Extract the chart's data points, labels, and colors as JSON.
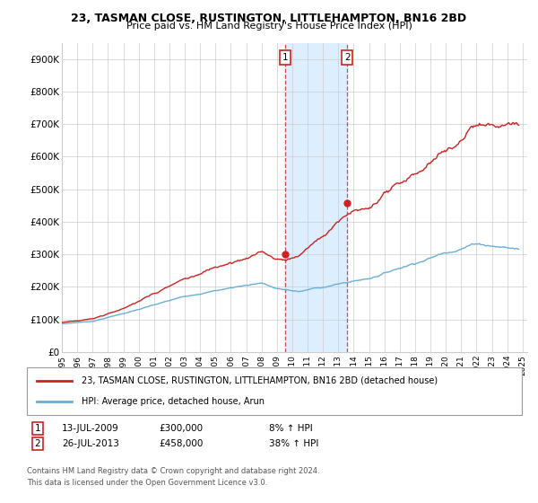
{
  "title": "23, TASMAN CLOSE, RUSTINGTON, LITTLEHAMPTON, BN16 2BD",
  "subtitle": "Price paid vs. HM Land Registry's House Price Index (HPI)",
  "legend_line1": "23, TASMAN CLOSE, RUSTINGTON, LITTLEHAMPTON, BN16 2BD (detached house)",
  "legend_line2": "HPI: Average price, detached house, Arun",
  "annotation1_date": "13-JUL-2009",
  "annotation1_price": "£300,000",
  "annotation1_pct": "8% ↑ HPI",
  "annotation2_date": "26-JUL-2013",
  "annotation2_price": "£458,000",
  "annotation2_pct": "38% ↑ HPI",
  "footnote1": "Contains HM Land Registry data © Crown copyright and database right 2024.",
  "footnote2": "This data is licensed under the Open Government Licence v3.0.",
  "sale1_year": 2009.54,
  "sale1_value": 300000,
  "sale2_year": 2013.57,
  "sale2_value": 458000,
  "hpi_color": "#6baed6",
  "price_color": "#cc2222",
  "sale_marker_color": "#cc2222",
  "shaded_region_color": "#ddeeff",
  "background_color": "#ffffff",
  "grid_color": "#cccccc",
  "ylim": [
    0,
    950000
  ],
  "xlim_start": 1995,
  "xlim_end": 2025.3
}
